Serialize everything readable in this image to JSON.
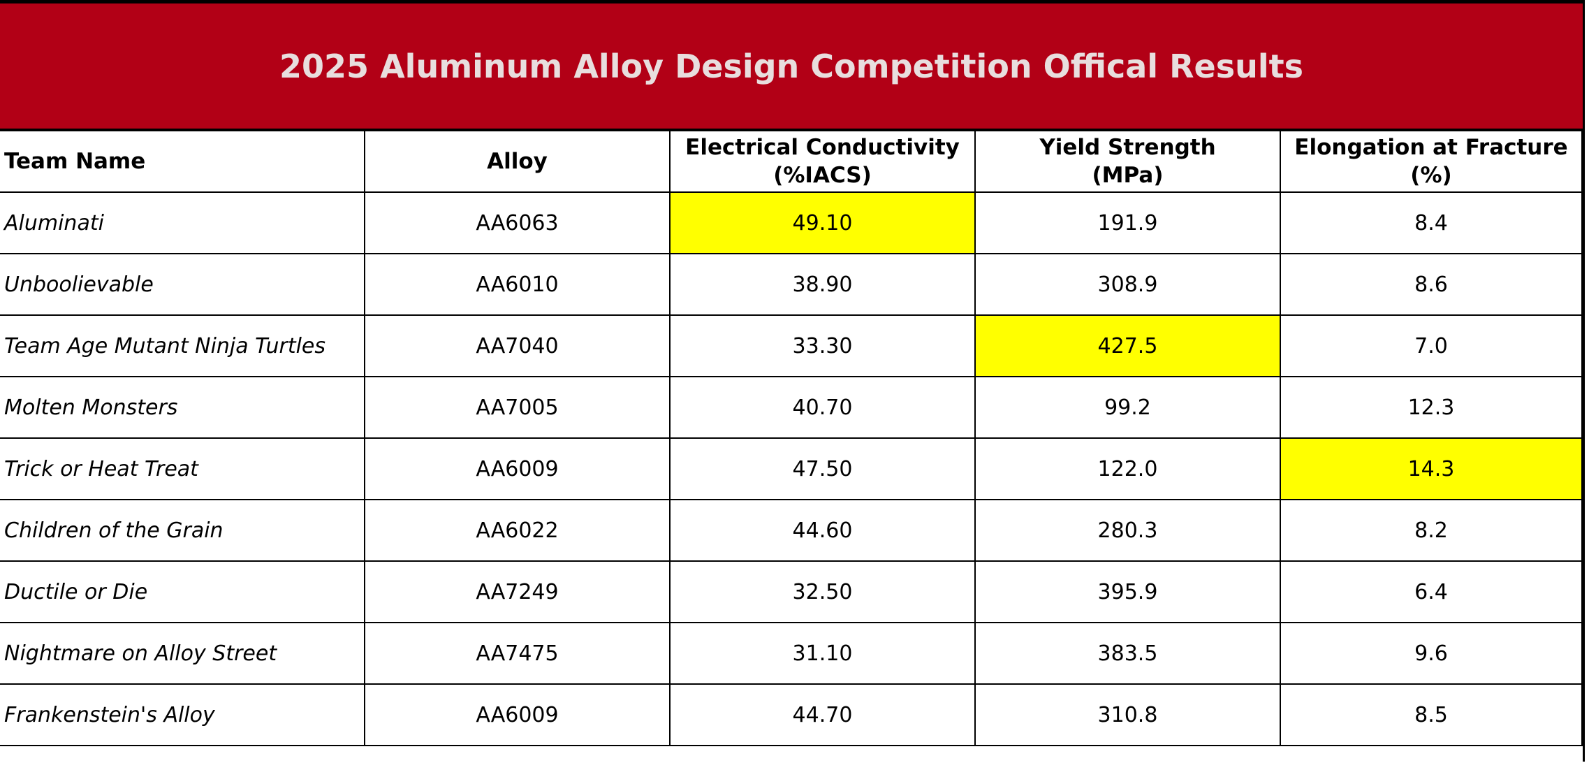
{
  "header": {
    "title": "2025 Aluminum Alloy Design Competition Offical Results"
  },
  "table": {
    "columns": [
      "Team Name",
      "Alloy",
      "Electrical Conductivity\n(%IACS)",
      "Yield Strength\n(MPa)",
      "Elongation at Fracture\n(%)"
    ],
    "rows": [
      [
        "Aluminati",
        "AA6063",
        "49.10",
        "191.9",
        "8.4"
      ],
      [
        "Unboolievable",
        "AA6010",
        "38.90",
        "308.9",
        "8.6"
      ],
      [
        "Team Age Mutant Ninja Turtles",
        "AA7040",
        "33.30",
        "427.5",
        "7.0"
      ],
      [
        "Molten Monsters",
        "AA7005",
        "40.70",
        "99.2",
        "12.3"
      ],
      [
        "Trick or Heat Treat",
        "AA6009",
        "47.50",
        "122.0",
        "14.3"
      ],
      [
        "Children of the Grain",
        "AA6022",
        "44.60",
        "280.3",
        "8.2"
      ],
      [
        "Ductile or Die",
        "AA7249",
        "32.50",
        "395.9",
        "6.4"
      ],
      [
        "Nightmare on Alloy Street",
        "AA7475",
        "31.10",
        "383.5",
        "9.6"
      ],
      [
        "Frankenstein's Alloy",
        "AA6009",
        "44.70",
        "310.8",
        "8.5"
      ]
    ]
  }
}
